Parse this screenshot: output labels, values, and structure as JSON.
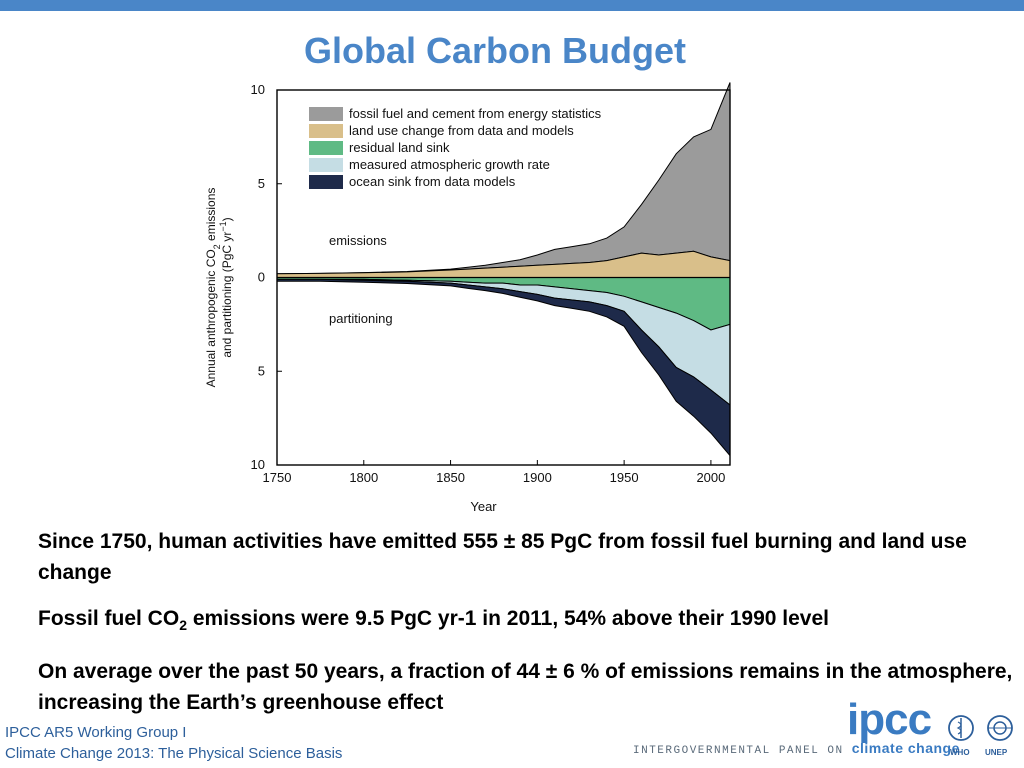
{
  "slide": {
    "title": "Global Carbon Budget",
    "bullets": {
      "b1": "Since 1750, human activities have emitted 555 ± 85 PgC from fossil fuel burning and land use change",
      "b2_pre": "Fossil fuel CO",
      "b2_sub": "2",
      "b2_post": " emissions were 9.5 PgC yr-1 in 2011, 54% above their 1990 level",
      "b3": "On average over the past 50 years, a fraction of 44 ± 6 % of emissions remains in the atmosphere, increasing the Earth’s greenhouse effect"
    },
    "footer": {
      "line1": "IPCC AR5 Working Group I",
      "line2": "Climate Change 2013:  The Physical Science Basis",
      "logo": "ipcc",
      "tagline_pre": "INTERGOVERNMENTAL PANEL ON ",
      "tagline_post": "climate change",
      "who": "WHO",
      "unep": "UNEP"
    }
  },
  "chart_data": {
    "type": "area",
    "xlabel": "Year",
    "ylabel_line1": "Annual anthropogenic CO",
    "ylabel_sub": "2",
    "ylabel_line1_end": " emissions",
    "ylabel_line2": "and partitioning (PgC yr",
    "ylabel_sup": "−1",
    "ylabel_line2_end": ")",
    "xlim": [
      1750,
      2011
    ],
    "ylim": [
      -10,
      10
    ],
    "x_ticks": [
      "1750",
      "1800",
      "1850",
      "1900",
      "1950",
      "2000"
    ],
    "y_ticks": [
      "10",
      "5",
      "0",
      "5",
      "10"
    ],
    "annotations": [
      "emissions",
      "partitioning"
    ],
    "colors": {
      "fossil": "#9b9b9b",
      "landuse": "#d9bf8a",
      "landsink": "#5fba84",
      "atmos": "#c5dde4",
      "ocean": "#1e2a4a",
      "edge": "#000000"
    },
    "legend": [
      "fossil fuel and cement from energy statistics",
      "land use change from data and models",
      "residual land sink",
      "measured atmospheric growth rate",
      "ocean sink from data models"
    ],
    "years": [
      1750,
      1775,
      1800,
      1825,
      1850,
      1860,
      1870,
      1880,
      1890,
      1900,
      1910,
      1920,
      1930,
      1940,
      1950,
      1960,
      1970,
      1980,
      1990,
      2000,
      2011
    ],
    "series": [
      {
        "name": "fossil fuel and cement from energy statistics",
        "values": [
          0.0,
          0.0,
          0.01,
          0.02,
          0.05,
          0.1,
          0.15,
          0.25,
          0.35,
          0.55,
          0.8,
          0.9,
          1.0,
          1.2,
          1.6,
          2.6,
          4.0,
          5.3,
          6.1,
          6.8,
          9.5
        ]
      },
      {
        "name": "land use change from data and models",
        "values": [
          0.2,
          0.22,
          0.25,
          0.3,
          0.4,
          0.45,
          0.5,
          0.55,
          0.6,
          0.65,
          0.7,
          0.75,
          0.8,
          0.9,
          1.1,
          1.3,
          1.2,
          1.3,
          1.4,
          1.1,
          0.9
        ]
      },
      {
        "name": "residual land sink",
        "values": [
          0.1,
          0.1,
          0.1,
          0.15,
          0.2,
          0.25,
          0.3,
          0.3,
          0.4,
          0.4,
          0.5,
          0.6,
          0.7,
          0.8,
          1.0,
          1.3,
          1.6,
          1.9,
          2.3,
          2.8,
          2.5
        ]
      },
      {
        "name": "measured atmospheric growth rate",
        "values": [
          0.0,
          0.0,
          0.05,
          0.05,
          0.1,
          0.15,
          0.2,
          0.3,
          0.35,
          0.5,
          0.6,
          0.6,
          0.6,
          0.7,
          0.8,
          1.5,
          2.1,
          2.9,
          3.0,
          3.2,
          4.3
        ]
      },
      {
        "name": "ocean sink from data models",
        "values": [
          0.1,
          0.1,
          0.1,
          0.12,
          0.15,
          0.18,
          0.2,
          0.25,
          0.3,
          0.35,
          0.4,
          0.45,
          0.5,
          0.6,
          0.8,
          1.2,
          1.5,
          1.8,
          2.1,
          2.3,
          2.7
        ]
      }
    ]
  }
}
